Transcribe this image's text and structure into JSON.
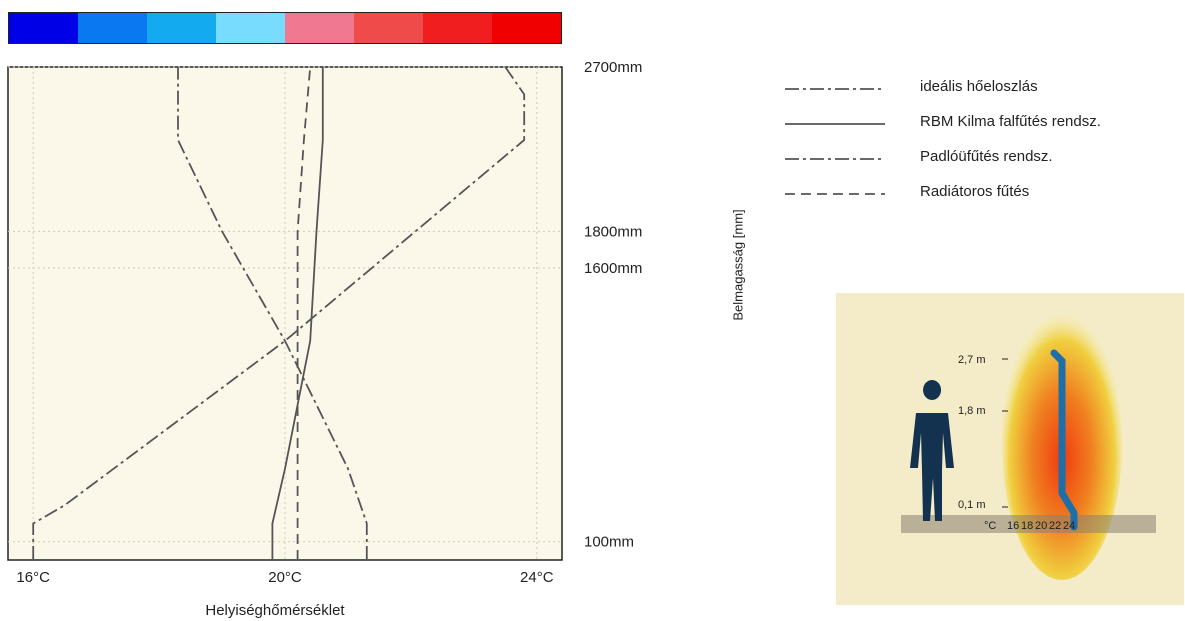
{
  "colorbar": [
    "#0000e6",
    "#0a78f0",
    "#14aaf0",
    "#78dcff",
    "#f07891",
    "#f04b4b",
    "#f01e1e",
    "#f00000"
  ],
  "chart_data": {
    "type": "line",
    "xlabel": "Helyiséghőmérséklet",
    "ylabel": "Belmagasság [mm]",
    "xlim": [
      15.6,
      24.4
    ],
    "ylim": [
      0,
      2700
    ],
    "x_ticks": [
      "16°C",
      "20°C",
      "24°C"
    ],
    "y_ticks": [
      "100mm",
      "1600mm",
      "1800mm",
      "2700mm"
    ],
    "grid": true,
    "legend_placement": "right",
    "series": [
      {
        "name": "ideális hőeloszlás",
        "style": "dash-dot",
        "points": [
          [
            21.3,
            0
          ],
          [
            21.3,
            200
          ],
          [
            21.0,
            500
          ],
          [
            20.0,
            1200
          ],
          [
            19.0,
            1800
          ],
          [
            18.3,
            2300
          ],
          [
            18.3,
            2700
          ]
        ]
      },
      {
        "name": "RBM Kilma falfűtés rendsz.",
        "style": "solid",
        "points": [
          [
            19.8,
            0
          ],
          [
            19.8,
            200
          ],
          [
            20.0,
            500
          ],
          [
            20.4,
            1200
          ],
          [
            20.5,
            1800
          ],
          [
            20.6,
            2300
          ],
          [
            20.6,
            2700
          ]
        ]
      },
      {
        "name": "Padlóüfűtés rendsz.",
        "style": "dash-dot",
        "points": [
          [
            16.0,
            0
          ],
          [
            16.0,
            200
          ],
          [
            16.5,
            300
          ],
          [
            20.0,
            1200
          ],
          [
            23.8,
            2300
          ],
          [
            23.8,
            2550
          ],
          [
            23.5,
            2700
          ]
        ]
      },
      {
        "name": "Radiátoros fűtés",
        "style": "dashed",
        "points": [
          [
            20.2,
            0
          ],
          [
            20.2,
            500
          ],
          [
            20.2,
            1200
          ],
          [
            20.2,
            1800
          ],
          [
            20.3,
            2300
          ],
          [
            20.4,
            2700
          ]
        ]
      }
    ]
  },
  "illustration": {
    "height_labels": [
      "2,7 m",
      "1,8 m",
      "0,1 m"
    ],
    "unit_label": "°C",
    "scale_labels": [
      "16",
      "18",
      "20",
      "22",
      "24"
    ]
  }
}
